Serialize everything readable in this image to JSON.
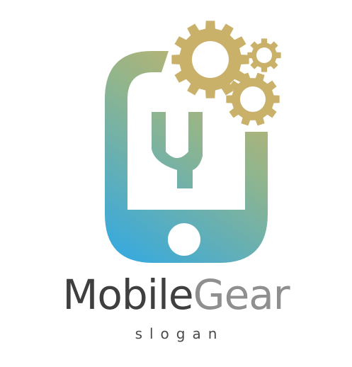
{
  "logo": {
    "wordmark_primary": "Mobile",
    "wordmark_secondary": "Gear",
    "slogan": "slogan"
  },
  "colors": {
    "gradient_blue": "#35a9e0",
    "gradient_green": "#8fb58e",
    "gradient_gold": "#d9b25c",
    "gear_gold": "#d8b35f",
    "text_dark": "#3f3f3f",
    "text_gray": "#8f8f8f"
  },
  "icons": {
    "device": "smartphone-icon",
    "tool": "wrench-icon",
    "gears": "gears-icon"
  }
}
